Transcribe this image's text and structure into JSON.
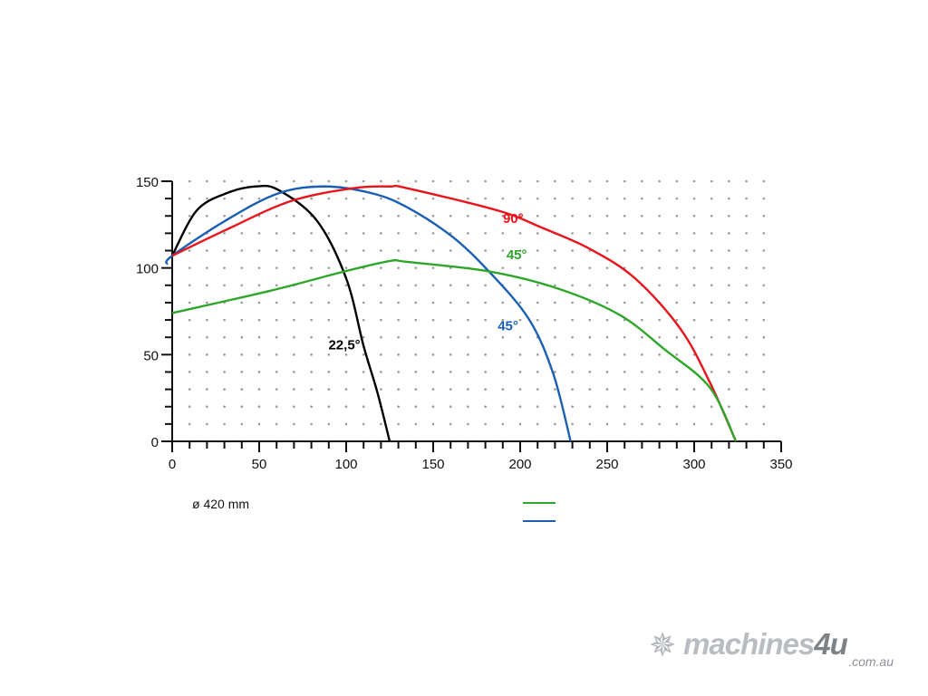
{
  "chart_data": {
    "type": "line",
    "title": "",
    "xlabel": "",
    "ylabel": "",
    "xlim": [
      0,
      350
    ],
    "ylim": [
      0,
      150
    ],
    "x_ticks": [
      "0",
      "50",
      "100",
      "150",
      "200",
      "250",
      "300",
      "350"
    ],
    "y_ticks": [
      "0",
      "50",
      "100",
      "150"
    ],
    "grid": "dotted every 10 units",
    "series": [
      {
        "name": "22,5°",
        "color": "#000000",
        "label_at": [
          99,
          53
        ],
        "points": [
          [
            0,
            107
          ],
          [
            14,
            133
          ],
          [
            31,
            143
          ],
          [
            48,
            147
          ],
          [
            61,
            145
          ],
          [
            83,
            127.5
          ],
          [
            100,
            94
          ],
          [
            110,
            55
          ],
          [
            118,
            28
          ],
          [
            125,
            0
          ]
        ]
      },
      {
        "name": "45°",
        "color": "#1a5fb4",
        "label_at": [
          193,
          64
        ],
        "points": [
          [
            -3,
            102
          ],
          [
            0,
            107
          ],
          [
            31,
            127.5
          ],
          [
            61,
            143
          ],
          [
            88,
            147
          ],
          [
            115,
            143
          ],
          [
            135,
            135
          ],
          [
            161,
            118
          ],
          [
            182,
            98
          ],
          [
            205,
            70.5
          ],
          [
            219,
            39
          ],
          [
            229,
            0
          ]
        ]
      },
      {
        "name": "90°",
        "color": "#e8141b",
        "label_at": [
          196,
          126
        ],
        "points": [
          [
            0,
            107
          ],
          [
            31,
            122
          ],
          [
            68,
            138.5
          ],
          [
            104,
            146
          ],
          [
            125,
            147
          ],
          [
            135,
            146
          ],
          [
            187.5,
            133
          ],
          [
            213,
            123
          ],
          [
            240,
            111
          ],
          [
            266,
            94
          ],
          [
            292,
            65
          ],
          [
            309,
            34
          ],
          [
            324,
            0
          ]
        ]
      },
      {
        "name": "45°",
        "color": "#2ea62a",
        "label_at": [
          198,
          105
        ],
        "points": [
          [
            0,
            74
          ],
          [
            57,
            87
          ],
          [
            99,
            98
          ],
          [
            125,
            104
          ],
          [
            135,
            103.5
          ],
          [
            182,
            98
          ],
          [
            222,
            88
          ],
          [
            257,
            73
          ],
          [
            283,
            53
          ],
          [
            309,
            31
          ],
          [
            324,
            0
          ]
        ]
      }
    ],
    "annotations": [
      "ø 420 mm"
    ],
    "legend": {
      "placement": "bottom-center",
      "entries": [
        {
          "color": "#2ea62a"
        },
        {
          "color": "#1a5fb4"
        }
      ]
    }
  },
  "logo": {
    "brand": "machines",
    "brand_accent": "4u",
    "domain": ".com.au"
  }
}
